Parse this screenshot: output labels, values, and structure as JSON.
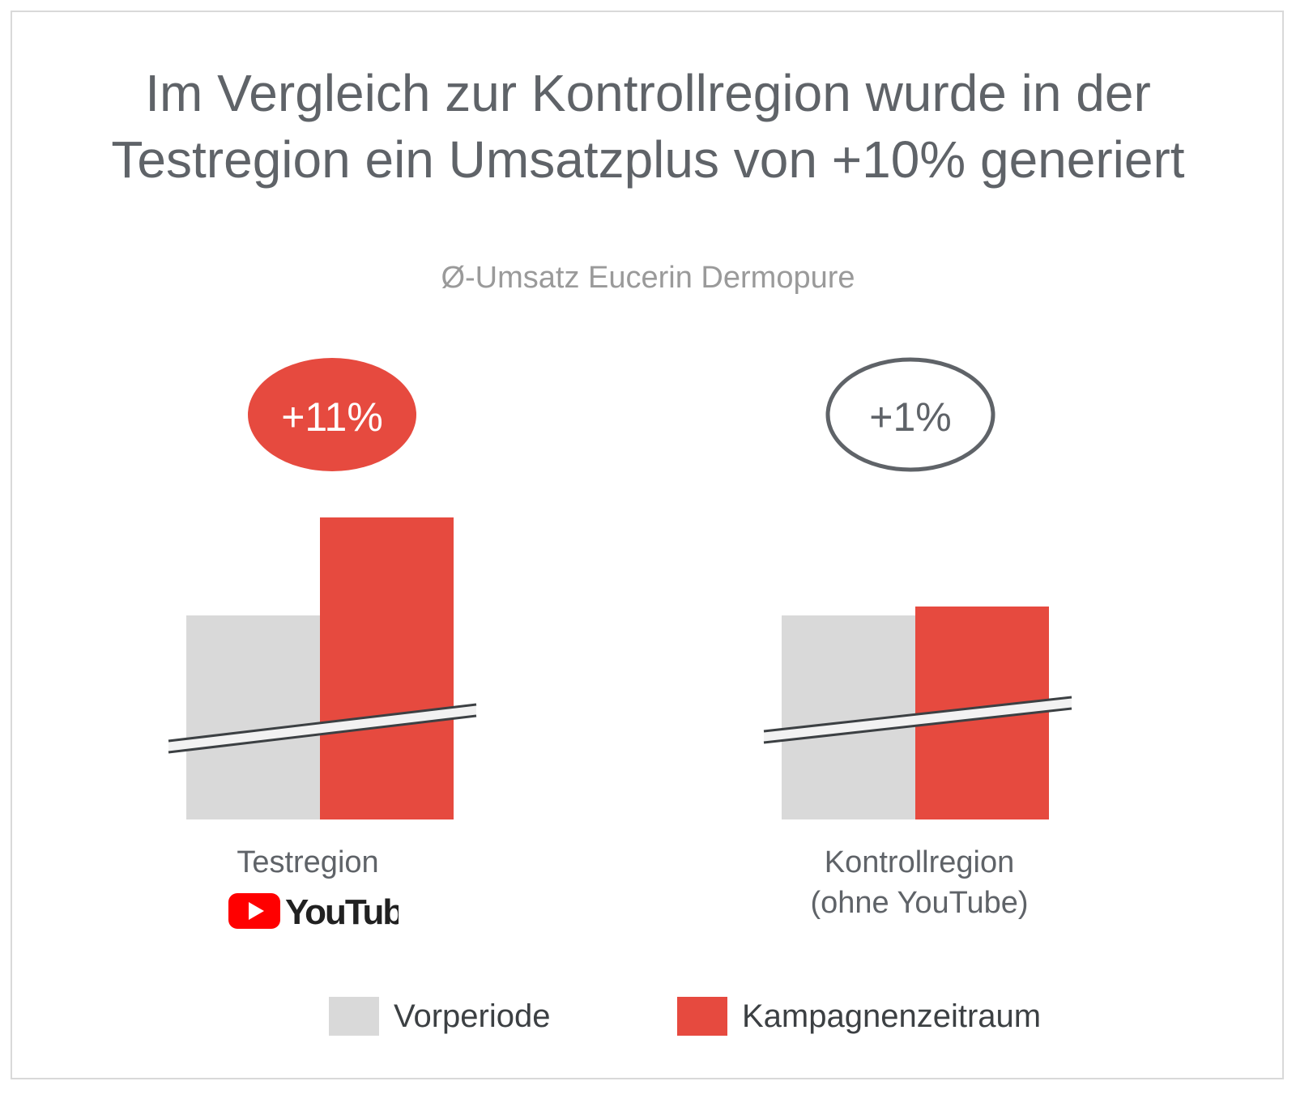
{
  "title_line1": "Im Vergleich zur Kontrollregion wurde in der",
  "title_line2": "Testregion ein Umsatzplus von +10% generiert",
  "colors": {
    "prior": "#d9d9d9",
    "campaign": "#e64a3f",
    "text": "#5f6368",
    "badge_outline": "#5f6368"
  },
  "chart_data": {
    "type": "bar",
    "title": "Ø-Umsatz Eucerin Dermopure",
    "axis_break": true,
    "categories": [
      {
        "label_line1": "Testregion",
        "label_line2": "",
        "logo": "YouTube",
        "change_label": "+11%",
        "badge_style": "filled"
      },
      {
        "label_line1": "Kontrollregion",
        "label_line2": "(ohne YouTube)",
        "logo": "",
        "change_label": "+1%",
        "badge_style": "outline"
      }
    ],
    "series": [
      {
        "name": "Vorperiode",
        "values": [
          100,
          100
        ]
      },
      {
        "name": "Kampagnenzeitraum",
        "values": [
          111,
          101
        ]
      }
    ],
    "legend_position": "bottom"
  }
}
